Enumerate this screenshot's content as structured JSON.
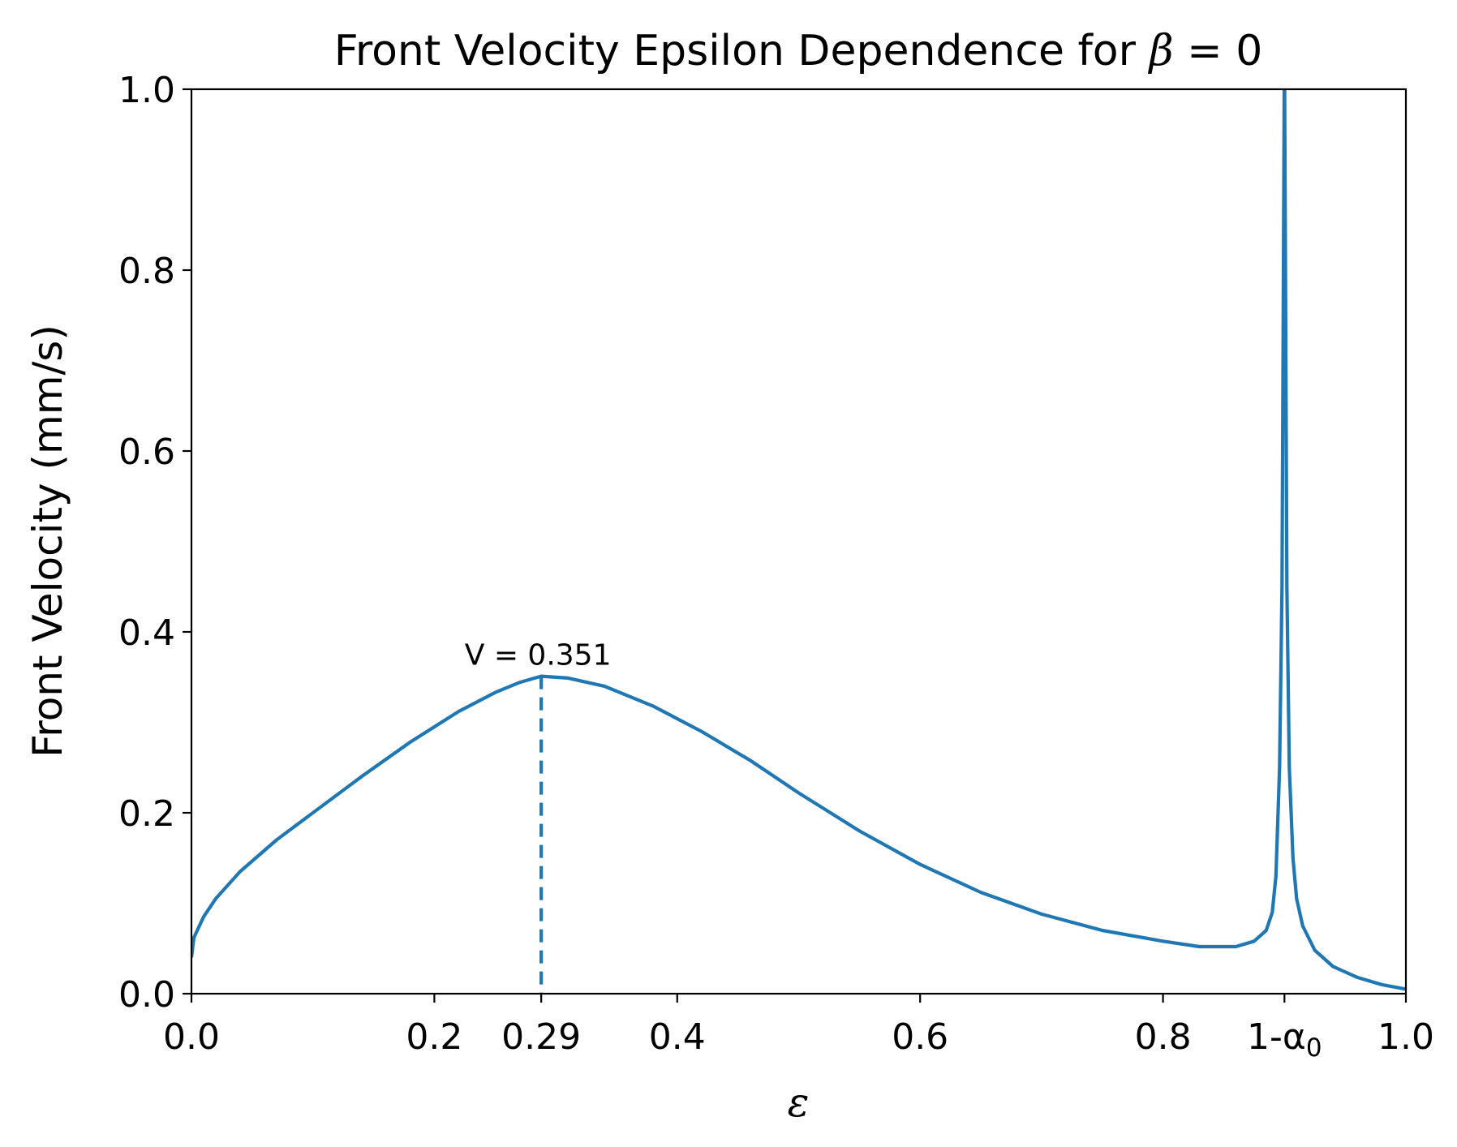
{
  "chart_data": {
    "type": "line",
    "title": "Front Velocity Epsilon Dependence for ",
    "title_math_symbol": "β",
    "title_math_rest": " = 0",
    "xlabel": "ε",
    "ylabel": "Front Velocity (mm/s)",
    "xlim": [
      0.0,
      1.0
    ],
    "ylim": [
      0.0,
      1.0
    ],
    "color": "#1f77b4",
    "x_ticks": [
      {
        "value": 0.0,
        "label": "0.0"
      },
      {
        "value": 0.2,
        "label": "0.2"
      },
      {
        "value": 0.288,
        "label": "0.29"
      },
      {
        "value": 0.4,
        "label": "0.4"
      },
      {
        "value": 0.6,
        "label": "0.6"
      },
      {
        "value": 0.8,
        "label": "0.8"
      },
      {
        "value": 0.9,
        "label": "1-α",
        "subscript": "0"
      },
      {
        "value": 1.0,
        "label": "1.0"
      }
    ],
    "y_ticks": [
      {
        "value": 0.0,
        "label": "0.0"
      },
      {
        "value": 0.2,
        "label": "0.2"
      },
      {
        "value": 0.4,
        "label": "0.4"
      },
      {
        "value": 0.6,
        "label": "0.6"
      },
      {
        "value": 0.8,
        "label": "0.8"
      },
      {
        "value": 1.0,
        "label": "1.0"
      }
    ],
    "series": [
      {
        "name": "front velocity",
        "x": [
          0.0,
          0.002,
          0.01,
          0.02,
          0.04,
          0.07,
          0.1,
          0.14,
          0.18,
          0.22,
          0.25,
          0.27,
          0.288,
          0.31,
          0.34,
          0.38,
          0.42,
          0.46,
          0.5,
          0.55,
          0.6,
          0.65,
          0.7,
          0.75,
          0.8,
          0.83,
          0.86,
          0.875,
          0.885,
          0.89,
          0.893,
          0.896,
          0.898,
          0.9,
          0.902,
          0.904,
          0.907,
          0.91,
          0.915,
          0.925,
          0.94,
          0.96,
          0.98,
          1.0
        ],
        "y": [
          0.04,
          0.062,
          0.085,
          0.105,
          0.135,
          0.17,
          0.2,
          0.24,
          0.278,
          0.312,
          0.333,
          0.344,
          0.351,
          0.349,
          0.34,
          0.318,
          0.29,
          0.258,
          0.222,
          0.18,
          0.143,
          0.112,
          0.088,
          0.07,
          0.058,
          0.052,
          0.052,
          0.058,
          0.07,
          0.09,
          0.13,
          0.25,
          0.45,
          1.05,
          0.45,
          0.25,
          0.15,
          0.105,
          0.075,
          0.048,
          0.03,
          0.018,
          0.01,
          0.005
        ]
      }
    ],
    "annotations": [
      {
        "text": "V = 0.351",
        "x": 0.288,
        "y": 0.351,
        "style": "dashed-vline"
      }
    ]
  }
}
